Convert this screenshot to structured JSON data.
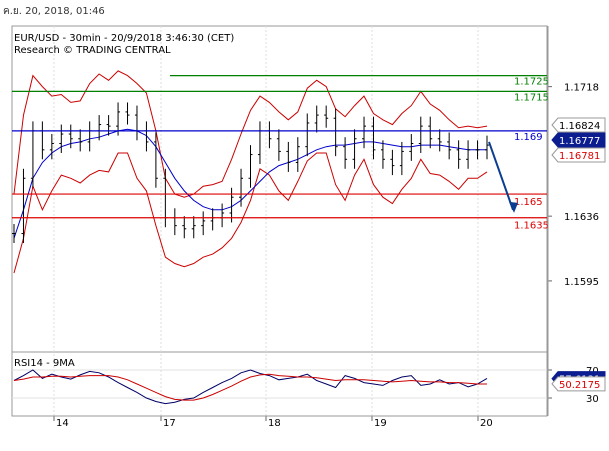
{
  "header": {
    "timestamp": "ค.ย. 20, 2018, 01:46"
  },
  "chart_data": [
    {
      "type": "candlestick",
      "title": "EUR/USD - 30min - 20/9/2018 3:46:30 (CET)",
      "subtitle": "Research © TRADING CENTRAL",
      "x_day_labels": [
        "14",
        "17",
        "18",
        "19",
        "20"
      ],
      "y_ticks": [
        "1.1718",
        "1.1636",
        "1.1595"
      ],
      "ylim": [
        1.155,
        1.1745
      ],
      "series": [
        {
          "values": [
            1.1625,
            1.166,
            1.169,
            1.1678,
            1.1682,
            1.1688,
            1.1685,
            1.1683,
            1.169,
            1.1694,
            1.1693,
            1.1702,
            1.17,
            1.169,
            1.1683,
            1.166,
            1.1635,
            1.163,
            1.1628,
            1.163,
            1.1633,
            1.1635,
            1.1638,
            1.1648,
            1.166,
            1.1675,
            1.169,
            1.1685,
            1.1677,
            1.167,
            1.168,
            1.1695,
            1.17,
            1.1698,
            1.168,
            1.1672,
            1.1685,
            1.1693,
            1.1678,
            1.1672,
            1.1668,
            1.1677,
            1.1682,
            1.1693,
            1.1685,
            1.1683,
            1.1678,
            1.1672,
            1.1678,
            1.1678,
            1.1681
          ]
        },
        {
          "values": [
            1.1622,
            1.164,
            1.166,
            1.167,
            1.1676,
            1.168,
            1.1682,
            1.1683,
            1.1685,
            1.1686,
            1.1688,
            1.169,
            1.1691,
            1.169,
            1.1687,
            1.168,
            1.167,
            1.166,
            1.1652,
            1.1646,
            1.1642,
            1.164,
            1.164,
            1.1642,
            1.1646,
            1.1652,
            1.1658,
            1.1664,
            1.1668,
            1.167,
            1.1672,
            1.1675,
            1.1678,
            1.168,
            1.1681,
            1.1681,
            1.1682,
            1.1683,
            1.1683,
            1.1682,
            1.1681,
            1.168,
            1.168,
            1.1681,
            1.1681,
            1.1681,
            1.168,
            1.1679,
            1.1678,
            1.1678,
            1.1678
          ]
        },
        {
          "values": [
            1.165,
            1.17,
            1.1725,
            1.1718,
            1.1712,
            1.1713,
            1.1708,
            1.1709,
            1.172,
            1.1726,
            1.1722,
            1.1728,
            1.1725,
            1.172,
            1.1714,
            1.169,
            1.166,
            1.165,
            1.1648,
            1.165,
            1.1655,
            1.1656,
            1.1658,
            1.1672,
            1.1688,
            1.1703,
            1.1712,
            1.1708,
            1.1702,
            1.1697,
            1.1702,
            1.1717,
            1.1722,
            1.1718,
            1.1704,
            1.1699,
            1.1706,
            1.1712,
            1.1701,
            1.1697,
            1.1694,
            1.1701,
            1.1706,
            1.1715,
            1.1707,
            1.1703,
            1.1697,
            1.1692,
            1.1693,
            1.1692,
            1.1693
          ]
        },
        {
          "values": [
            1.16,
            1.1622,
            1.1655,
            1.164,
            1.1652,
            1.1662,
            1.166,
            1.1657,
            1.1662,
            1.1665,
            1.1664,
            1.1676,
            1.1676,
            1.166,
            1.1652,
            1.163,
            1.161,
            1.1606,
            1.1604,
            1.1606,
            1.161,
            1.1612,
            1.1616,
            1.1622,
            1.1632,
            1.1646,
            1.1666,
            1.1662,
            1.1652,
            1.1646,
            1.1658,
            1.1671,
            1.1676,
            1.1676,
            1.1656,
            1.1646,
            1.1662,
            1.1672,
            1.1656,
            1.1648,
            1.1644,
            1.1653,
            1.166,
            1.1672,
            1.1663,
            1.1662,
            1.1658,
            1.1653,
            1.166,
            1.166,
            1.1664
          ]
        }
      ],
      "horizontal_levels": [
        {
          "value": 1.1725,
          "label": "1.1725",
          "color": "#008000"
        },
        {
          "value": 1.1715,
          "label": "1.1715",
          "color": "#008000"
        },
        {
          "value": 1.169,
          "label": "1.169",
          "color": "#0000cc"
        },
        {
          "value": 1.165,
          "label": "1.165",
          "color": "#dd0000"
        },
        {
          "value": 1.1635,
          "label": "1.1635",
          "color": "#dd0000"
        }
      ],
      "price_tags": [
        {
          "value": 1.16824,
          "label": "1.16824",
          "style": "black"
        },
        {
          "value": 1.16777,
          "label": "1.16777",
          "style": "blue"
        },
        {
          "value": 1.16781,
          "label": "1.16781",
          "style": "red"
        }
      ],
      "forecast_arrow": {
        "from": 1.1683,
        "to": 1.164,
        "color": "#0b3d91"
      },
      "colors": {
        "price": "#000000",
        "ma": "#0000cc",
        "bands": "#cc0000",
        "grid": "#cccccc"
      }
    },
    {
      "type": "line",
      "title": "RSI14 - 9MA",
      "y_ticks": [
        "70",
        "30"
      ],
      "ylim": [
        10,
        90
      ],
      "series": [
        {
          "name": "RSI14",
          "values": [
            55,
            62,
            70,
            58,
            64,
            60,
            57,
            63,
            68,
            66,
            60,
            52,
            45,
            38,
            30,
            25,
            22,
            24,
            28,
            30,
            38,
            45,
            52,
            58,
            66,
            70,
            65,
            62,
            56,
            58,
            60,
            64,
            55,
            50,
            45,
            62,
            58,
            52,
            50,
            48,
            55,
            60,
            62,
            48,
            50,
            56,
            50,
            52,
            46,
            50,
            58
          ],
          "color": "#000066"
        },
        {
          "name": "9MA",
          "values": [
            55,
            57,
            60,
            60,
            61,
            61,
            60,
            61,
            62,
            62,
            62,
            60,
            56,
            50,
            44,
            38,
            32,
            28,
            27,
            27,
            30,
            35,
            41,
            47,
            54,
            60,
            63,
            64,
            62,
            61,
            60,
            60,
            59,
            57,
            55,
            56,
            56,
            56,
            55,
            54,
            53,
            54,
            55,
            54,
            53,
            53,
            52,
            52,
            51,
            50,
            50
          ],
          "color": "#cc0000"
        }
      ],
      "price_tags": [
        {
          "value": 57.6131,
          "label": "57.6131",
          "style": "blue"
        },
        {
          "value": 50.2175,
          "label": "50.2175",
          "style": "red"
        }
      ]
    }
  ]
}
